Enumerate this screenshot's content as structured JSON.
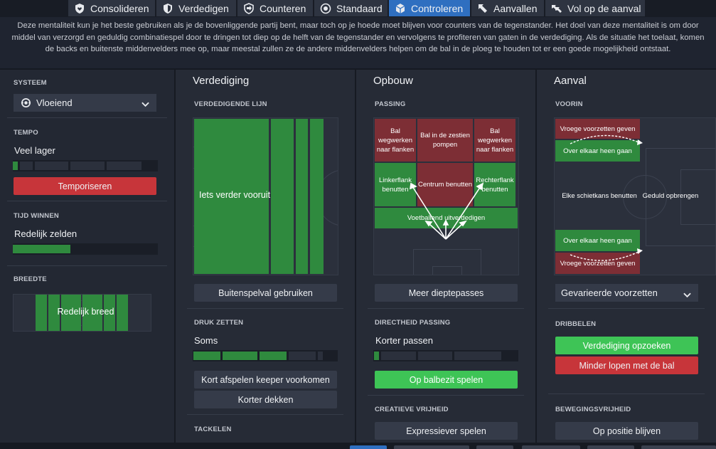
{
  "tabs": [
    {
      "label": "Consolideren",
      "icon": "shield-heart-icon"
    },
    {
      "label": "Verdedigen",
      "icon": "shield-icon"
    },
    {
      "label": "Counteren",
      "icon": "counter-arrow-icon"
    },
    {
      "label": "Standaard",
      "icon": "balance-icon"
    },
    {
      "label": "Controleren",
      "icon": "cube-icon",
      "active": true
    },
    {
      "label": "Aanvallen",
      "icon": "attack-arrow-icon"
    },
    {
      "label": "Vol op de aanval",
      "icon": "double-arrow-icon"
    }
  ],
  "description": "Deze mentaliteit kun je het beste gebruiken als je de bovenliggende partij bent, maar toch op je hoede moet blijven voor counters van de tegenstander. Het doel van deze mentaliteit is om door middel van verzorgd en geduldig combinatiespel door te dringen tot diep op de helft van de tegenstander en vervolgens te profiteren van gaten in de verdediging. Als de situatie het toelaat, komen de backs en buitenste middenvelders mee op, maar meestal zullen ze de andere middenvelders helpen om de bal in de ploeg te houden tot er een goede mogelijkheid ontstaat.",
  "left": {
    "systeem_label": "SYSTEEM",
    "systeem_value": "Vloeiend",
    "tempo_label": "TEMPO",
    "tempo_value": "Veel lager",
    "tempo_level": 0.07,
    "tempo_button": "Temporiseren",
    "tijd_label": "TIJD WINNEN",
    "tijd_value": "Redelijk zelden",
    "tijd_level": 0.4,
    "breedte_label": "BREEDTE",
    "breedte_value": "Redelijk breed"
  },
  "defence": {
    "title": "Verdediging",
    "line_label": "VERDEDIGENDE LIJN",
    "line_value": "Iets verder vooruit",
    "offside_button": "Buitenspelval gebruiken",
    "press_label": "DRUK ZETTEN",
    "press_value": "Soms",
    "press_level": 0.6,
    "keeper_button": "Kort afspelen keeper voorkomen",
    "mark_button": "Korter dekken",
    "tackle_label": "TACKELEN"
  },
  "buildup": {
    "title": "Opbouw",
    "passing_label": "PASSING",
    "zones": {
      "left_flank_clear": "Bal wegwerken naar flanken",
      "center_clear": "Bal in de zestien pompen",
      "right_flank_clear": "Bal wegwerken naar flanken",
      "left_flank": "Linkerflank benutten",
      "center": "Centrum benutten",
      "right_flank": "Rechterflank benutten",
      "ball_playing": "Voetballend uitverdedigen"
    },
    "depth_button": "Meer dieptepasses",
    "directness_label": "DIRECTHEID PASSING",
    "directness_value": "Korter passen",
    "directness_level": 0.04,
    "possession_button": "Op balbezit spelen",
    "creative_label": "CREATIEVE VRIJHEID",
    "expressive_button": "Expressiever spelen"
  },
  "attack": {
    "title": "Aanval",
    "voorin_label": "VOORIN",
    "zones": {
      "early_cross_top": "Vroege voorzetten geven",
      "overlap_top": "Over elkaar heen gaan",
      "every_shot": "Elke schietkans benutten",
      "patience": "Geduld opbrengen",
      "overlap_bottom": "Over elkaar heen gaan",
      "early_cross_bottom": "Vroege voorzetten geven"
    },
    "cross_dropdown": "Gevarieerde voorzetten",
    "dribble_label": "DRIBBELEN",
    "dribble_button_1": "Verdediging opzoeken",
    "dribble_button_2": "Minder lopen met de bal",
    "movement_label": "BEWEGINGSVRIJHEID",
    "movement_button": "Op positie blijven"
  },
  "colors": {
    "active_tab": "#2f6fc0",
    "green_zone": "#2f8a3e",
    "red_zone": "#7d2e35",
    "bright_green": "#3ec456",
    "red_button": "#c7353a"
  }
}
